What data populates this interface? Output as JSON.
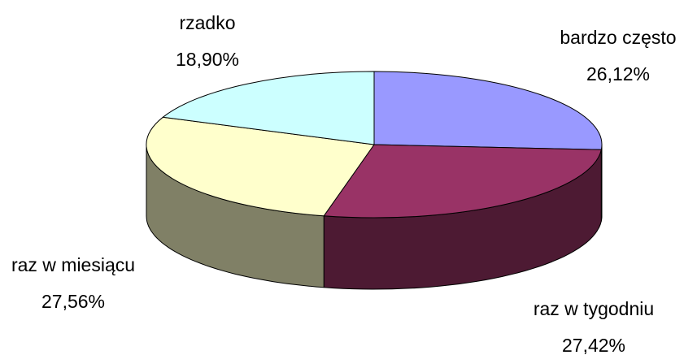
{
  "chart_data": {
    "type": "pie",
    "categories": [
      "bardzo często",
      "raz w tygodniu",
      "raz w miesiącu",
      "rzadko"
    ],
    "values": [
      26.12,
      27.42,
      27.56,
      18.9
    ],
    "value_labels": [
      "26,12%",
      "27,42%",
      "27,56%",
      "18,90%"
    ],
    "colors": [
      "#9999ff",
      "#993366",
      "#ffffcc",
      "#ccffff"
    ]
  }
}
